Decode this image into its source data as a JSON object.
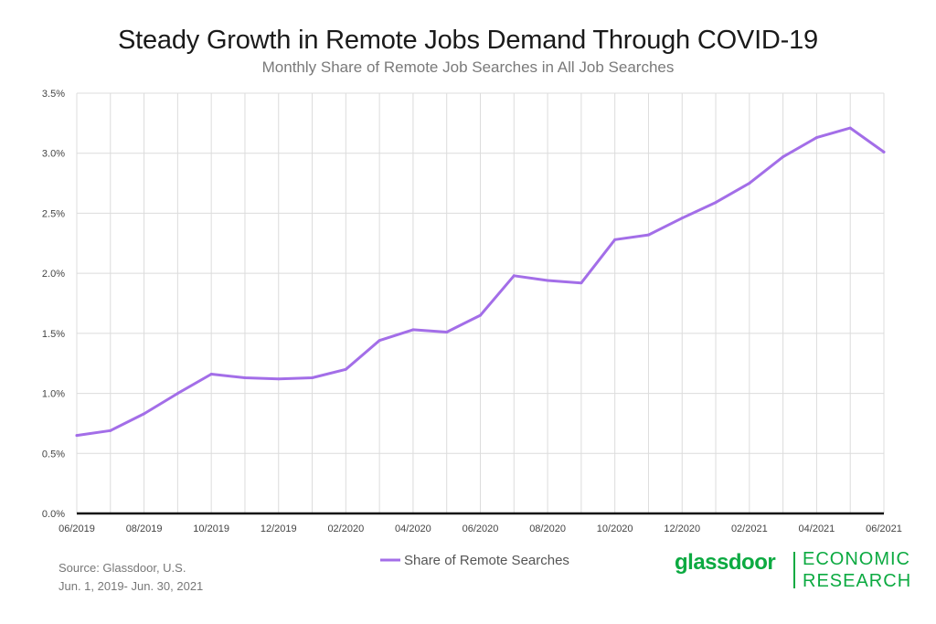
{
  "header": {
    "title": "Steady Growth in Remote Jobs Demand Through COVID-19",
    "subtitle": "Monthly Share of Remote Job Searches in All Job Searches"
  },
  "chart_data": {
    "type": "line",
    "x": [
      "06/2019",
      "07/2019",
      "08/2019",
      "09/2019",
      "10/2019",
      "11/2019",
      "12/2019",
      "01/2020",
      "02/2020",
      "03/2020",
      "04/2020",
      "05/2020",
      "06/2020",
      "07/2020",
      "08/2020",
      "09/2020",
      "10/2020",
      "11/2020",
      "12/2020",
      "01/2021",
      "02/2021",
      "03/2021",
      "04/2021",
      "05/2021",
      "06/2021"
    ],
    "x_tick_labels": [
      "06/2019",
      "08/2019",
      "10/2019",
      "12/2019",
      "02/2020",
      "04/2020",
      "06/2020",
      "08/2020",
      "10/2020",
      "12/2020",
      "02/2021",
      "04/2021",
      "06/2021"
    ],
    "y_ticks": [
      0.0,
      0.5,
      1.0,
      1.5,
      2.0,
      2.5,
      3.0,
      3.5
    ],
    "y_tick_labels": [
      "0.0%",
      "0.5%",
      "1.0%",
      "1.5%",
      "2.0%",
      "2.5%",
      "3.0%",
      "3.5%"
    ],
    "ylim": [
      0,
      3.5
    ],
    "grid": true,
    "series": [
      {
        "name": "Share of Remote Searches",
        "color": "#a36ee8",
        "values": [
          0.65,
          0.69,
          0.83,
          1.0,
          1.16,
          1.13,
          1.12,
          1.13,
          1.2,
          1.44,
          1.53,
          1.51,
          1.65,
          1.98,
          1.94,
          1.92,
          2.28,
          2.32,
          2.46,
          2.59,
          2.75,
          2.97,
          3.13,
          3.21,
          3.01
        ]
      }
    ],
    "legend_position": "bottom-center"
  },
  "footer": {
    "source_line1": "Source: Glassdoor, U.S.",
    "source_line2": "Jun. 1, 2019- Jun. 30, 2021"
  },
  "brand": {
    "wordmark": "glassdoor",
    "division_line1": "ECONOMIC",
    "division_line2": "RESEARCH",
    "color": "#0caa41"
  }
}
